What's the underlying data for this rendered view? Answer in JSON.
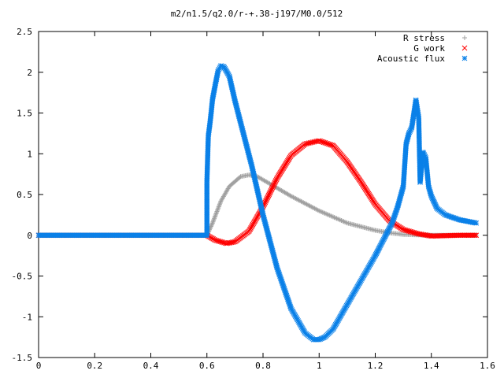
{
  "chart_data": {
    "type": "scatter",
    "title": "m2/n1.5/q2.0/r-+.38-j197/M0.0/512",
    "xlabel": "",
    "ylabel": "",
    "xlim": [
      0,
      1.6
    ],
    "ylim": [
      -1.5,
      2.5
    ],
    "xticks": [
      "0",
      "0.2",
      "0.4",
      "0.6",
      "0.8",
      "1",
      "1.2",
      "1.4",
      "1.6"
    ],
    "yticks": [
      "2.5",
      "2",
      "1.5",
      "1",
      "0.5",
      "0",
      "-0.5",
      "-1",
      "-1.5"
    ],
    "grid": false,
    "legend_position": "top-right",
    "series": [
      {
        "name": "R stress",
        "marker": "+",
        "color": "#a0a0a0",
        "points": [
          [
            0,
            0
          ],
          [
            0.6,
            0
          ],
          [
            0.62,
            0.15
          ],
          [
            0.65,
            0.42
          ],
          [
            0.68,
            0.6
          ],
          [
            0.72,
            0.72
          ],
          [
            0.75,
            0.74
          ],
          [
            0.78,
            0.72
          ],
          [
            0.82,
            0.64
          ],
          [
            0.9,
            0.48
          ],
          [
            1.0,
            0.3
          ],
          [
            1.1,
            0.15
          ],
          [
            1.2,
            0.06
          ],
          [
            1.25,
            0.03
          ],
          [
            1.3,
            0.01
          ],
          [
            1.4,
            0
          ],
          [
            1.56,
            0
          ]
        ]
      },
      {
        "name": "G work",
        "marker": "x",
        "color": "#ff0000",
        "points": [
          [
            0,
            0
          ],
          [
            0.6,
            0
          ],
          [
            0.63,
            -0.06
          ],
          [
            0.67,
            -0.1
          ],
          [
            0.7,
            -0.08
          ],
          [
            0.75,
            0.05
          ],
          [
            0.8,
            0.35
          ],
          [
            0.85,
            0.7
          ],
          [
            0.9,
            0.98
          ],
          [
            0.95,
            1.12
          ],
          [
            1.0,
            1.16
          ],
          [
            1.05,
            1.1
          ],
          [
            1.1,
            0.9
          ],
          [
            1.15,
            0.65
          ],
          [
            1.2,
            0.38
          ],
          [
            1.25,
            0.18
          ],
          [
            1.3,
            0.07
          ],
          [
            1.35,
            0.02
          ],
          [
            1.4,
            -0.01
          ],
          [
            1.5,
            0
          ],
          [
            1.56,
            0
          ]
        ]
      },
      {
        "name": "Acoustic flux",
        "marker": "*",
        "color": "#0a80e8",
        "points": [
          [
            0,
            0
          ],
          [
            0.6,
            0
          ],
          [
            0.6,
            0.66
          ],
          [
            0.605,
            1.22
          ],
          [
            0.61,
            1.35
          ],
          [
            0.615,
            1.5
          ],
          [
            0.62,
            1.67
          ],
          [
            0.63,
            1.85
          ],
          [
            0.64,
            2.02
          ],
          [
            0.65,
            2.08
          ],
          [
            0.66,
            2.07
          ],
          [
            0.68,
            1.95
          ],
          [
            0.7,
            1.65
          ],
          [
            0.73,
            1.25
          ],
          [
            0.76,
            0.85
          ],
          [
            0.8,
            0.25
          ],
          [
            0.85,
            -0.4
          ],
          [
            0.9,
            -0.9
          ],
          [
            0.95,
            -1.2
          ],
          [
            0.98,
            -1.28
          ],
          [
            1.0,
            -1.28
          ],
          [
            1.02,
            -1.25
          ],
          [
            1.05,
            -1.15
          ],
          [
            1.1,
            -0.85
          ],
          [
            1.15,
            -0.55
          ],
          [
            1.2,
            -0.25
          ],
          [
            1.23,
            -0.05
          ],
          [
            1.26,
            0.15
          ],
          [
            1.28,
            0.35
          ],
          [
            1.3,
            0.6
          ],
          [
            1.31,
            1.12
          ],
          [
            1.32,
            1.25
          ],
          [
            1.33,
            1.32
          ],
          [
            1.345,
            1.66
          ],
          [
            1.355,
            1.44
          ],
          [
            1.36,
            0.65
          ],
          [
            1.37,
            1.02
          ],
          [
            1.38,
            0.95
          ],
          [
            1.39,
            0.6
          ],
          [
            1.4,
            0.48
          ],
          [
            1.42,
            0.33
          ],
          [
            1.45,
            0.25
          ],
          [
            1.5,
            0.19
          ],
          [
            1.56,
            0.15
          ]
        ]
      }
    ]
  }
}
